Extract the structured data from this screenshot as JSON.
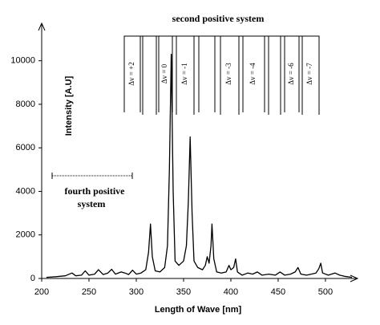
{
  "chart_data": {
    "type": "line",
    "xlabel": "Length of Wave [nm]",
    "ylabel": "Intensity [A.U]",
    "series": [
      {
        "color": "#000000",
        "x": [
          205,
          215,
          225,
          232,
          236,
          242,
          246,
          250,
          256,
          260,
          265,
          270,
          274,
          278,
          284,
          288,
          292,
          296,
          300,
          305,
          310,
          313,
          315,
          317,
          320,
          325,
          330,
          333,
          335,
          337,
          339,
          341,
          345,
          350,
          353,
          355,
          357,
          359,
          361,
          365,
          370,
          373,
          375,
          377,
          379,
          380,
          382,
          385,
          390,
          395,
          398,
          400,
          403,
          405,
          407,
          412,
          418,
          423,
          428,
          433,
          440,
          447,
          452,
          457,
          463,
          468,
          471,
          474,
          480,
          485,
          490,
          493,
          495,
          497,
          503,
          510,
          515,
          520,
          528
        ],
        "values": [
          50,
          80,
          120,
          250,
          120,
          150,
          350,
          150,
          200,
          400,
          180,
          250,
          420,
          200,
          300,
          250,
          180,
          380,
          200,
          250,
          400,
          1200,
          2500,
          1000,
          350,
          300,
          500,
          1500,
          5000,
          10300,
          4000,
          800,
          600,
          800,
          1500,
          3500,
          6500,
          3000,
          800,
          500,
          400,
          600,
          1000,
          700,
          1500,
          2500,
          900,
          300,
          250,
          300,
          600,
          400,
          500,
          900,
          300,
          150,
          250,
          200,
          300,
          150,
          200,
          150,
          300,
          150,
          200,
          300,
          500,
          200,
          150,
          200,
          250,
          450,
          700,
          250,
          150,
          250,
          150,
          100,
          50
        ]
      }
    ],
    "xlim": [
      200,
      528
    ],
    "ylim": [
      0,
      11500
    ],
    "xticks": [
      200,
      250,
      300,
      350,
      400,
      450,
      500
    ],
    "yticks": [
      0,
      2000,
      4000,
      6000,
      8000,
      10000
    ],
    "annotations": {
      "second_positive_system": "second positive system",
      "band_labels": [
        "Δv = +2",
        "Δv = 0",
        "Δv = -1",
        "Δv = -3",
        "Δv = -4",
        "Δv = -6",
        "Δv = -7"
      ],
      "fourth_positive_system": [
        "fourth positive",
        "system"
      ]
    }
  }
}
